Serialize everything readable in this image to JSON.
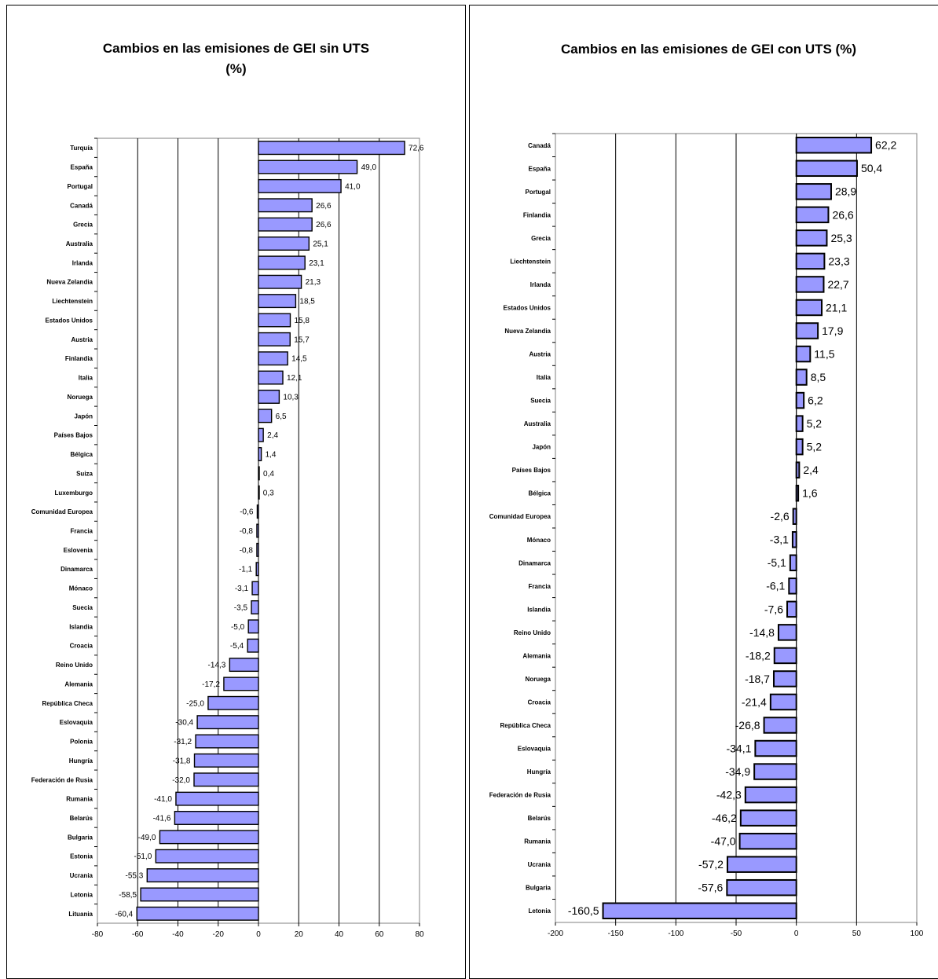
{
  "chart_data": [
    {
      "type": "bar",
      "orientation": "horizontal",
      "title_line1": "Cambios en las emisiones de GEI sin UTS",
      "title_line2": "(%)",
      "categories": [
        "Turquía",
        "España",
        "Portugal",
        "Canadá",
        "Grecia",
        "Australia",
        "Irlanda",
        "Nueva Zelandia",
        "Liechtenstein",
        "Estados Unidos",
        "Austria",
        "Finlandia",
        "Italia",
        "Noruega",
        "Japón",
        "Países Bajos",
        "Bélgica",
        "Suiza",
        "Luxemburgo",
        "Comunidad Europea",
        "Francia",
        "Eslovenia",
        "Dinamarca",
        "Mónaco",
        "Suecia",
        "Islandia",
        "Croacia",
        "Reino Unido",
        "Alemania",
        "República Checa",
        "Eslovaquia",
        "Polonia",
        "Hungría",
        "Federación de Rusia",
        "Rumania",
        "Belarús",
        "Bulgaria",
        "Estonia",
        "Ucrania",
        "Letonia",
        "Lituania"
      ],
      "values": [
        72.6,
        49.0,
        41.0,
        26.6,
        26.6,
        25.1,
        23.1,
        21.3,
        18.5,
        15.8,
        15.7,
        14.5,
        12.1,
        10.3,
        6.5,
        2.4,
        1.4,
        0.4,
        0.3,
        -0.6,
        -0.8,
        -0.8,
        -1.1,
        -3.1,
        -3.5,
        -5.0,
        -5.4,
        -14.3,
        -17.2,
        -25.0,
        -30.4,
        -31.2,
        -31.8,
        -32.0,
        -41.0,
        -41.6,
        -49.0,
        -51.0,
        -55.3,
        -58.5,
        -60.4
      ],
      "labels": [
        "72,6",
        "49,0",
        "41,0",
        "26,6",
        "26,6",
        "25,1",
        "23,1",
        "21,3",
        "18,5",
        "15,8",
        "15,7",
        "14,5",
        "12,1",
        "10,3",
        "6,5",
        "2,4",
        "1,4",
        "0,4",
        "0,3",
        "-0,6",
        "-0,8",
        "-0,8",
        "-1,1",
        "-3,1",
        "-3,5",
        "-5,0",
        "-5,4",
        "-14,3",
        "-17,2",
        "-25,0",
        "-30,4",
        "-31,2",
        "-31,8",
        "-32,0",
        "-41,0",
        "-41,6",
        "-49,0",
        "-51,0",
        "-55,3",
        "-58,5",
        "-60,4"
      ],
      "xlim": [
        -80,
        80
      ],
      "xticks": [
        -80,
        -60,
        -40,
        -20,
        0,
        20,
        40,
        60,
        80
      ],
      "xtick_labels": [
        "-80",
        "-60",
        "-40",
        "-20",
        "0",
        "20",
        "40",
        "60",
        "80"
      ],
      "bar_color": "#9999ff",
      "grid": true
    },
    {
      "type": "bar",
      "orientation": "horizontal",
      "title_line1": "Cambios en las emisiones de GEI con UTS (%)",
      "title_line2": "",
      "categories": [
        "Canadá",
        "España",
        "Portugal",
        "Finlandia",
        "Grecia",
        "Liechtenstein",
        "Irlanda",
        "Estados Unidos",
        "Nueva Zelandia",
        "Austria",
        "Italia",
        "Suecia",
        "Australia",
        "Japón",
        "Países Bajos",
        "Bélgica",
        "Comunidad Europea",
        "Mónaco",
        "Dinamarca",
        "Francia",
        "Islandia",
        "Reino Unido",
        "Alemania",
        "Noruega",
        "Croacia",
        "República Checa",
        "Eslovaquia",
        "Hungría",
        "Federación de Rusia",
        "Belarús",
        "Rumania",
        "Ucrania",
        "Bulgaria",
        "Letonia"
      ],
      "values": [
        62.2,
        50.4,
        28.9,
        26.6,
        25.3,
        23.3,
        22.7,
        21.1,
        17.9,
        11.5,
        8.5,
        6.2,
        5.2,
        5.2,
        2.4,
        1.6,
        -2.6,
        -3.1,
        -5.1,
        -6.1,
        -7.6,
        -14.8,
        -18.2,
        -18.7,
        -21.4,
        -26.8,
        -34.1,
        -34.9,
        -42.3,
        -46.2,
        -47.0,
        -57.2,
        -57.6,
        -160.5
      ],
      "labels": [
        "62,2",
        "50,4",
        "28,9",
        "26,6",
        "25,3",
        "23,3",
        "22,7",
        "21,1",
        "17,9",
        "11,5",
        "8,5",
        "6,2",
        "5,2",
        "5,2",
        "2,4",
        "1,6",
        "-2,6",
        "-3,1",
        "-5,1",
        "-6,1",
        "-7,6",
        "-14,8",
        "-18,2",
        "-18,7",
        "-21,4",
        "-26,8",
        "-34,1",
        "-34,9",
        "-42,3",
        "-46,2",
        "-47,0",
        "-57,2",
        "-57,6",
        "-160,5"
      ],
      "xlim": [
        -200,
        100
      ],
      "xticks": [
        -200,
        -150,
        -100,
        -50,
        0,
        50,
        100
      ],
      "xtick_labels": [
        "-200",
        "-150",
        "-100",
        "-50",
        "0",
        "50",
        "100"
      ],
      "bar_color": "#9999ff",
      "grid": true
    }
  ]
}
